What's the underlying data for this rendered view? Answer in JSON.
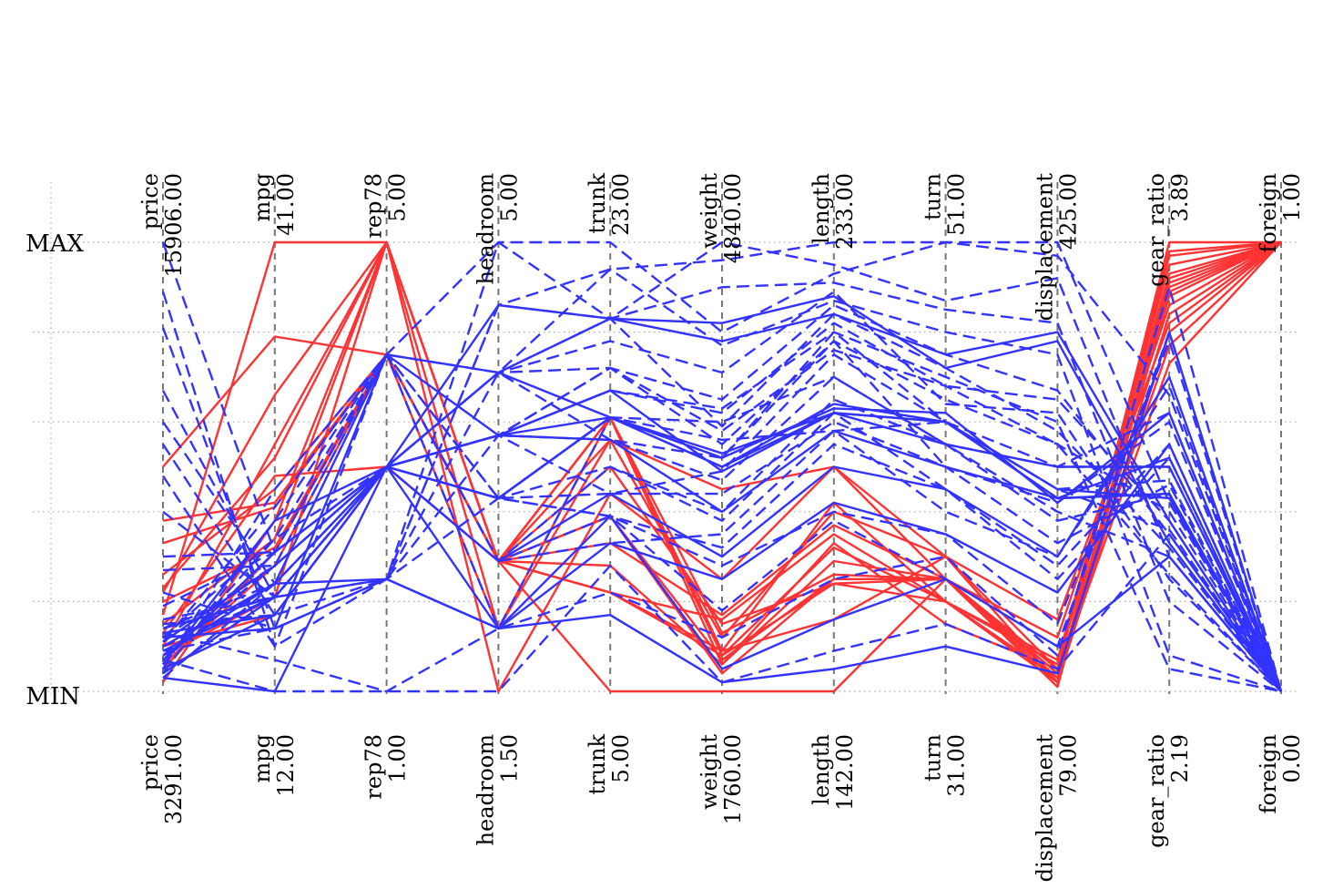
{
  "chart_data": {
    "type": "parallel-coordinates",
    "y_labels": {
      "max": "MAX",
      "min": "MIN"
    },
    "axes": [
      {
        "name": "price",
        "max": "15906.00",
        "min": "3291.00"
      },
      {
        "name": "mpg",
        "max": "41.00",
        "min": "12.00"
      },
      {
        "name": "rep78",
        "max": "5.00",
        "min": "1.00"
      },
      {
        "name": "headroom",
        "max": "5.00",
        "min": "1.50"
      },
      {
        "name": "trunk",
        "max": "23.00",
        "min": "5.00"
      },
      {
        "name": "weight",
        "max": "4840.00",
        "min": "1760.00"
      },
      {
        "name": "length",
        "max": "233.00",
        "min": "142.00"
      },
      {
        "name": "turn",
        "max": "51.00",
        "min": "31.00"
      },
      {
        "name": "displacement",
        "max": "425.00",
        "min": "79.00"
      },
      {
        "name": "gear_ratio",
        "max": "3.89",
        "min": "2.19"
      },
      {
        "name": "foreign",
        "max": "1.00",
        "min": "0.00"
      }
    ],
    "colors": {
      "foreign": "#ff3333",
      "domestic": "#3333ff"
    },
    "series": [
      {
        "group": "foreign",
        "values": [
          0.17,
          1.0,
          1.0,
          0.29,
          0.0,
          0.0,
          0.0,
          0.25,
          0.02,
          1.0,
          1.0
        ]
      },
      {
        "group": "foreign",
        "values": [
          0.5,
          0.79,
          0.75,
          0.29,
          0.56,
          0.45,
          0.5,
          0.25,
          0.02,
          0.92,
          1.0
        ]
      },
      {
        "group": "foreign",
        "values": [
          0.22,
          0.66,
          1.0,
          0.14,
          0.61,
          0.09,
          0.42,
          0.2,
          0.07,
          0.95,
          1.0
        ]
      },
      {
        "group": "foreign",
        "values": [
          0.13,
          0.48,
          0.5,
          0.29,
          0.39,
          0.07,
          0.25,
          0.25,
          0.05,
          0.97,
          1.0
        ]
      },
      {
        "group": "foreign",
        "values": [
          0.38,
          0.42,
          0.75,
          0.29,
          0.22,
          0.16,
          0.35,
          0.2,
          0.02,
          0.89,
          1.0
        ]
      },
      {
        "group": "foreign",
        "values": [
          0.1,
          0.55,
          1.0,
          0.0,
          0.44,
          0.25,
          0.5,
          0.3,
          0.16,
          0.82,
          1.0
        ]
      },
      {
        "group": "foreign",
        "values": [
          0.26,
          0.45,
          0.75,
          0.29,
          0.61,
          0.13,
          0.26,
          0.25,
          0.12,
          0.86,
          1.0
        ]
      },
      {
        "group": "foreign",
        "values": [
          0.02,
          0.38,
          1.0,
          0.29,
          0.22,
          0.09,
          0.16,
          0.3,
          0.05,
          0.77,
          1.0
        ]
      },
      {
        "group": "foreign",
        "values": [
          0.2,
          0.32,
          0.75,
          0.29,
          0.5,
          0.15,
          0.24,
          0.2,
          0.03,
          0.88,
          1.0
        ]
      },
      {
        "group": "foreign",
        "values": [
          0.1,
          0.17,
          0.5,
          0.29,
          0.61,
          0.06,
          0.29,
          0.25,
          0.01,
          0.91,
          1.0
        ]
      },
      {
        "group": "foreign",
        "values": [
          0.15,
          0.34,
          1.0,
          0.29,
          0.28,
          0.06,
          0.33,
          0.15,
          0.05,
          0.98,
          1.0
        ]
      },
      {
        "group": "foreign",
        "values": [
          0.06,
          0.28,
          0.75,
          0.29,
          0.33,
          0.17,
          0.37,
          0.25,
          0.04,
          0.73,
          1.0
        ]
      },
      {
        "group": "foreign",
        "values": [
          0.33,
          0.41,
          0.75,
          0.14,
          0.56,
          0.12,
          0.4,
          0.3,
          0.02,
          0.8,
          1.0
        ]
      },
      {
        "group": "foreign",
        "values": [
          0.08,
          0.21,
          1.0,
          0.29,
          0.22,
          0.08,
          0.32,
          0.2,
          0.06,
          0.93,
          1.0
        ]
      },
      {
        "group": "foreign",
        "values": [
          0.05,
          0.31,
          0.75,
          0.29,
          0.39,
          0.04,
          0.25,
          0.25,
          0.03,
          0.9,
          1.0
        ]
      },
      {
        "group": "foreign",
        "values": [
          0.23,
          0.52,
          1.0,
          0.29,
          0.61,
          0.08,
          0.24,
          0.25,
          0.04,
          0.84,
          1.0
        ]
      },
      {
        "group": "domestic",
        "dash": true,
        "values": [
          1.0,
          0.31,
          0.75,
          1.0,
          1.0,
          0.8,
          0.93,
          1.0,
          0.97,
          0.66,
          0.0
        ]
      },
      {
        "group": "domestic",
        "dash": true,
        "values": [
          0.89,
          0.1,
          0.75,
          0.71,
          0.94,
          0.96,
          1.0,
          1.0,
          1.0,
          0.42,
          0.0
        ]
      },
      {
        "group": "domestic",
        "dash": true,
        "values": [
          0.81,
          0.14,
          0.25,
          0.86,
          0.83,
          1.0,
          0.95,
          0.87,
          0.92,
          0.3,
          0.0
        ]
      },
      {
        "group": "domestic",
        "dash": true,
        "values": [
          0.67,
          0.21,
          0.5,
          0.57,
          0.72,
          0.65,
          0.86,
          0.75,
          0.67,
          0.35,
          0.0
        ]
      },
      {
        "group": "domestic",
        "dash": true,
        "values": [
          0.6,
          0.24,
          0.5,
          0.71,
          0.78,
          0.71,
          0.89,
          0.64,
          0.62,
          0.25,
          0.0
        ]
      },
      {
        "group": "domestic",
        "dash": true,
        "values": [
          0.55,
          0.17,
          0.5,
          0.43,
          0.61,
          0.52,
          0.8,
          0.6,
          0.45,
          0.47,
          0.0
        ]
      },
      {
        "group": "domestic",
        "dash": true,
        "values": [
          0.48,
          0.1,
          0.25,
          0.71,
          0.83,
          0.59,
          0.84,
          0.72,
          0.58,
          0.32,
          0.0
        ]
      },
      {
        "group": "domestic",
        "dash": true,
        "values": [
          0.4,
          0.21,
          0.5,
          0.57,
          0.67,
          0.62,
          0.82,
          0.68,
          0.65,
          0.38,
          0.0
        ]
      },
      {
        "group": "domestic",
        "dash": true,
        "values": [
          0.27,
          0.28,
          0.75,
          0.43,
          0.44,
          0.49,
          0.75,
          0.6,
          0.5,
          0.5,
          0.0
        ]
      },
      {
        "group": "domestic",
        "dash": true,
        "values": [
          0.19,
          0.31,
          0.5,
          0.57,
          0.56,
          0.52,
          0.78,
          0.5,
          0.42,
          0.6,
          0.0
        ]
      },
      {
        "group": "domestic",
        "dash": true,
        "values": [
          0.14,
          0.24,
          0.5,
          0.43,
          0.61,
          0.6,
          0.7,
          0.55,
          0.38,
          0.44,
          0.0
        ]
      },
      {
        "group": "domestic",
        "dash": true,
        "values": [
          0.12,
          0.34,
          0.75,
          0.29,
          0.5,
          0.38,
          0.62,
          0.45,
          0.25,
          0.52,
          0.0
        ]
      },
      {
        "group": "domestic",
        "dash": true,
        "values": [
          0.1,
          0.21,
          0.5,
          0.57,
          0.44,
          0.44,
          0.6,
          0.5,
          0.33,
          0.46,
          0.0
        ]
      },
      {
        "group": "domestic",
        "dash": true,
        "values": [
          0.09,
          0.14,
          0.25,
          0.43,
          0.39,
          0.32,
          0.55,
          0.45,
          0.28,
          0.55,
          0.0
        ]
      },
      {
        "group": "domestic",
        "dash": true,
        "values": [
          0.08,
          0.28,
          0.5,
          0.29,
          0.33,
          0.35,
          0.58,
          0.4,
          0.3,
          0.68,
          0.0
        ]
      },
      {
        "group": "domestic",
        "dash": true,
        "values": [
          0.07,
          0.0,
          0.0,
          0.0,
          0.28,
          0.02,
          0.09,
          0.15,
          0.05,
          0.35,
          0.0
        ]
      },
      {
        "group": "domestic",
        "dash": true,
        "values": [
          0.06,
          0.34,
          0.5,
          0.71,
          0.72,
          0.55,
          0.78,
          0.65,
          0.55,
          0.4,
          0.0
        ]
      },
      {
        "group": "domestic",
        "dash": true,
        "values": [
          0.05,
          0.45,
          0.75,
          0.43,
          0.39,
          0.28,
          0.4,
          0.35,
          0.15,
          0.78,
          0.0
        ]
      },
      {
        "group": "domestic",
        "dash": true,
        "values": [
          0.04,
          0.38,
          0.75,
          0.14,
          0.22,
          0.12,
          0.25,
          0.3,
          0.08,
          0.9,
          0.0
        ]
      },
      {
        "group": "domestic",
        "dash": true,
        "values": [
          0.03,
          0.24,
          0.5,
          0.71,
          0.56,
          0.47,
          0.7,
          0.55,
          0.4,
          0.3,
          0.0
        ]
      },
      {
        "group": "domestic",
        "dash": true,
        "values": [
          0.15,
          0.17,
          0.25,
          0.86,
          0.94,
          0.77,
          0.87,
          0.8,
          0.75,
          0.08,
          0.0
        ]
      },
      {
        "group": "domestic",
        "dash": true,
        "values": [
          0.12,
          0.28,
          0.5,
          0.57,
          0.67,
          0.63,
          0.8,
          0.7,
          0.6,
          0.05,
          0.0
        ]
      },
      {
        "group": "domestic",
        "dash": true,
        "values": [
          0.22,
          0.14,
          0.25,
          1.0,
          0.83,
          0.9,
          0.91,
          0.85,
          0.82,
          0.2,
          0.0
        ]
      },
      {
        "group": "domestic",
        "dash": true,
        "values": [
          0.3,
          0.31,
          0.5,
          0.43,
          0.5,
          0.4,
          0.65,
          0.55,
          0.5,
          0.62,
          0.0
        ]
      },
      {
        "group": "domestic",
        "dash": true,
        "values": [
          0.11,
          0.41,
          0.75,
          0.29,
          0.39,
          0.18,
          0.38,
          0.25,
          0.1,
          0.8,
          0.0
        ]
      },
      {
        "group": "domestic",
        "dash": true,
        "values": [
          0.16,
          0.21,
          0.25,
          0.57,
          0.72,
          0.58,
          0.76,
          0.68,
          0.55,
          0.26,
          0.0
        ]
      },
      {
        "group": "domestic",
        "dash": true,
        "values": [
          0.13,
          0.07,
          0.0,
          0.14,
          0.61,
          0.56,
          0.58,
          0.6,
          0.45,
          0.36,
          0.0
        ]
      },
      {
        "group": "domestic",
        "dash": false,
        "values": [
          0.03,
          0.0,
          0.5,
          0.86,
          0.83,
          0.82,
          0.88,
          0.72,
          0.78,
          0.33,
          0.0
        ]
      },
      {
        "group": "domestic",
        "dash": false,
        "values": [
          0.1,
          0.24,
          0.75,
          0.71,
          0.61,
          0.53,
          0.62,
          0.6,
          0.45,
          0.43,
          0.0
        ]
      },
      {
        "group": "domestic",
        "dash": false,
        "values": [
          0.05,
          0.17,
          0.5,
          0.57,
          0.61,
          0.5,
          0.62,
          0.55,
          0.5,
          0.5,
          0.0
        ]
      },
      {
        "group": "domestic",
        "dash": false,
        "values": [
          0.14,
          0.21,
          0.5,
          0.14,
          0.33,
          0.25,
          0.42,
          0.35,
          0.22,
          0.55,
          0.0
        ]
      },
      {
        "group": "domestic",
        "dash": false,
        "values": [
          0.11,
          0.28,
          0.5,
          0.43,
          0.61,
          0.52,
          0.63,
          0.62,
          0.42,
          0.62,
          0.0
        ]
      },
      {
        "group": "domestic",
        "dash": false,
        "values": [
          0.08,
          0.24,
          0.25,
          0.14,
          0.17,
          0.02,
          0.05,
          0.1,
          0.04,
          0.8,
          0.0
        ]
      },
      {
        "group": "domestic",
        "dash": false,
        "values": [
          0.07,
          0.31,
          0.5,
          0.71,
          0.83,
          0.78,
          0.84,
          0.75,
          0.8,
          0.38,
          0.0
        ]
      },
      {
        "group": "domestic",
        "dash": false,
        "values": [
          0.12,
          0.14,
          0.75,
          0.57,
          0.56,
          0.4,
          0.58,
          0.5,
          0.43,
          0.44,
          0.0
        ]
      },
      {
        "group": "domestic",
        "dash": false,
        "values": [
          0.06,
          0.38,
          0.5,
          0.29,
          0.44,
          0.3,
          0.5,
          0.45,
          0.3,
          0.7,
          0.0
        ]
      },
      {
        "group": "domestic",
        "dash": false,
        "values": [
          0.09,
          0.21,
          0.5,
          0.43,
          0.61,
          0.5,
          0.64,
          0.6,
          0.43,
          0.52,
          0.0
        ]
      },
      {
        "group": "domestic",
        "dash": false,
        "values": [
          0.04,
          0.21,
          0.25,
          0.14,
          0.39,
          0.05,
          0.16,
          0.25,
          0.1,
          0.3,
          0.0
        ]
      },
      {
        "group": "domestic",
        "dash": false,
        "values": [
          0.13,
          0.17,
          0.5,
          0.57,
          0.67,
          0.49,
          0.62,
          0.6,
          0.43,
          0.44,
          0.0
        ]
      }
    ]
  }
}
